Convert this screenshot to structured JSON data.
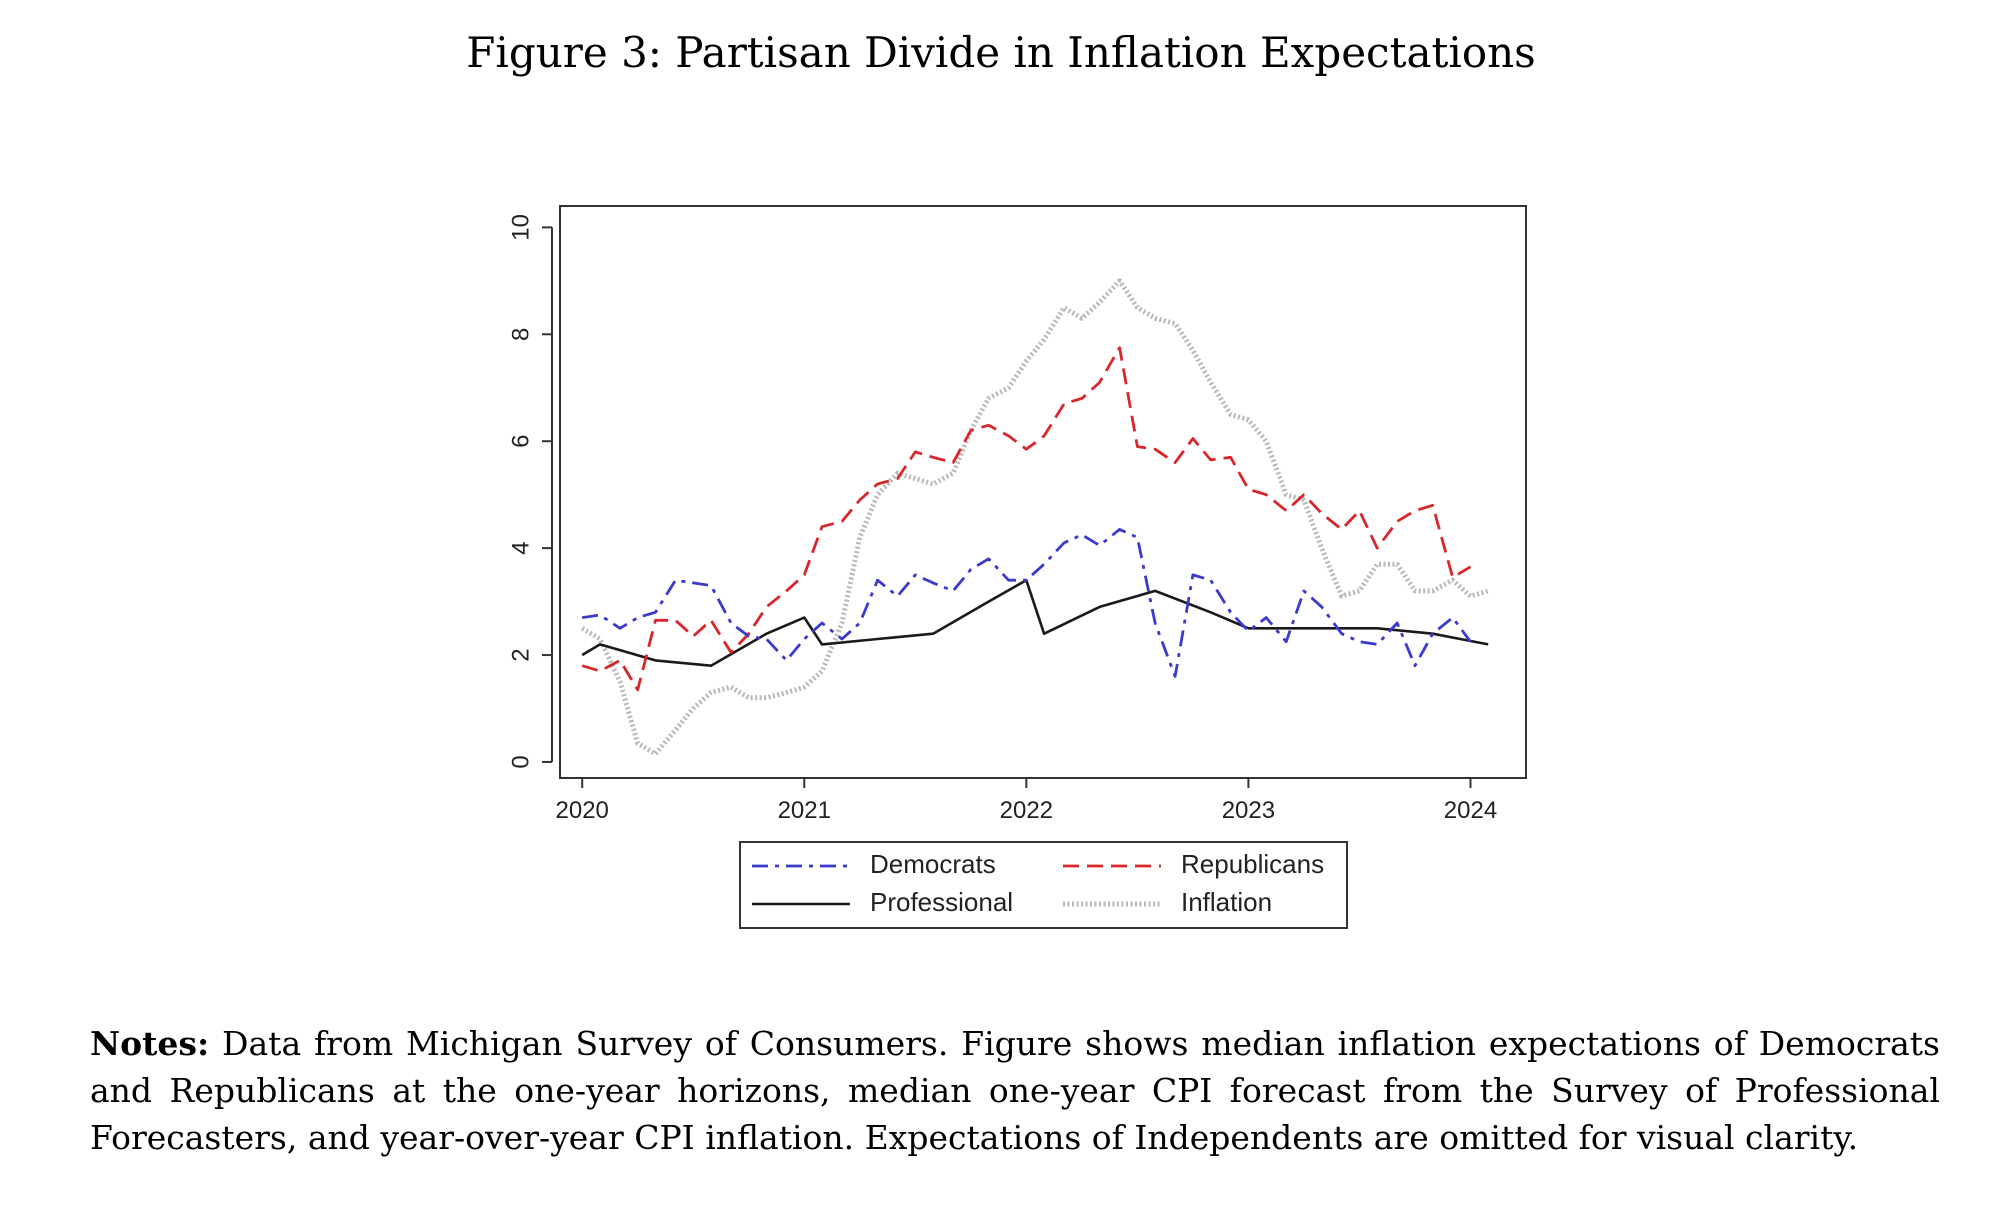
{
  "figure": {
    "title": "Figure 3: Partisan Divide in Inflation Expectations",
    "notes_label": "Notes:",
    "notes_text": "Data from Michigan Survey of Consumers. Figure shows median inflation expectations of Democrats and Republicans at the one-year horizons, median one-year CPI forecast from the Survey of Professional Forecasters, and year-over-year CPI inflation. Expectations of Independents are omitted for visual clarity."
  },
  "chart_data": {
    "type": "line",
    "title": "",
    "xlabel": "",
    "ylabel": "",
    "xlim": [
      2019.9,
      2024.25
    ],
    "ylim": [
      -0.3,
      10.4
    ],
    "xticks": [
      2020,
      2021,
      2022,
      2023,
      2024
    ],
    "xtick_labels": [
      "2020",
      "2021",
      "2022",
      "2023",
      "2024"
    ],
    "yticks": [
      0,
      2,
      4,
      6,
      8,
      10
    ],
    "ytick_labels": [
      "0",
      "2",
      "4",
      "6",
      "8",
      "10"
    ],
    "legend_position": "bottom",
    "series": [
      {
        "name": "Democrats",
        "color": "#3a3acd",
        "style": "dashdot",
        "points": [
          [
            2020.0,
            2.7
          ],
          [
            2020.08,
            2.75
          ],
          [
            2020.17,
            2.5
          ],
          [
            2020.25,
            2.7
          ],
          [
            2020.33,
            2.8
          ],
          [
            2020.42,
            3.4
          ],
          [
            2020.5,
            3.35
          ],
          [
            2020.58,
            3.3
          ],
          [
            2020.67,
            2.6
          ],
          [
            2020.75,
            2.35
          ],
          [
            2020.83,
            2.3
          ],
          [
            2020.92,
            1.9
          ],
          [
            2021.0,
            2.3
          ],
          [
            2021.08,
            2.6
          ],
          [
            2021.17,
            2.3
          ],
          [
            2021.25,
            2.6
          ],
          [
            2021.33,
            3.4
          ],
          [
            2021.42,
            3.1
          ],
          [
            2021.5,
            3.5
          ],
          [
            2021.58,
            3.35
          ],
          [
            2021.67,
            3.2
          ],
          [
            2021.75,
            3.6
          ],
          [
            2021.83,
            3.8
          ],
          [
            2021.92,
            3.4
          ],
          [
            2022.0,
            3.4
          ],
          [
            2022.08,
            3.7
          ],
          [
            2022.17,
            4.1
          ],
          [
            2022.25,
            4.25
          ],
          [
            2022.33,
            4.05
          ],
          [
            2022.42,
            4.35
          ],
          [
            2022.5,
            4.2
          ],
          [
            2022.58,
            2.6
          ],
          [
            2022.67,
            1.6
          ],
          [
            2022.75,
            3.5
          ],
          [
            2022.83,
            3.4
          ],
          [
            2022.92,
            2.8
          ],
          [
            2023.0,
            2.45
          ],
          [
            2023.08,
            2.7
          ],
          [
            2023.17,
            2.25
          ],
          [
            2023.25,
            3.2
          ],
          [
            2023.33,
            2.9
          ],
          [
            2023.42,
            2.4
          ],
          [
            2023.5,
            2.25
          ],
          [
            2023.58,
            2.2
          ],
          [
            2023.67,
            2.6
          ],
          [
            2023.75,
            1.8
          ],
          [
            2023.83,
            2.4
          ],
          [
            2023.92,
            2.7
          ],
          [
            2024.0,
            2.25
          ]
        ]
      },
      {
        "name": "Republicans",
        "color": "#d9262b",
        "style": "dashed",
        "points": [
          [
            2020.0,
            1.8
          ],
          [
            2020.08,
            1.7
          ],
          [
            2020.17,
            1.9
          ],
          [
            2020.25,
            1.35
          ],
          [
            2020.33,
            2.65
          ],
          [
            2020.42,
            2.65
          ],
          [
            2020.5,
            2.35
          ],
          [
            2020.58,
            2.65
          ],
          [
            2020.67,
            2.05
          ],
          [
            2020.75,
            2.4
          ],
          [
            2020.83,
            2.9
          ],
          [
            2020.92,
            3.2
          ],
          [
            2021.0,
            3.5
          ],
          [
            2021.08,
            4.4
          ],
          [
            2021.17,
            4.5
          ],
          [
            2021.25,
            4.9
          ],
          [
            2021.33,
            5.2
          ],
          [
            2021.42,
            5.3
          ],
          [
            2021.5,
            5.8
          ],
          [
            2021.58,
            5.7
          ],
          [
            2021.67,
            5.6
          ],
          [
            2021.75,
            6.2
          ],
          [
            2021.83,
            6.3
          ],
          [
            2021.92,
            6.1
          ],
          [
            2022.0,
            5.85
          ],
          [
            2022.08,
            6.1
          ],
          [
            2022.17,
            6.7
          ],
          [
            2022.25,
            6.8
          ],
          [
            2022.33,
            7.1
          ],
          [
            2022.42,
            7.75
          ],
          [
            2022.5,
            5.9
          ],
          [
            2022.58,
            5.85
          ],
          [
            2022.67,
            5.6
          ],
          [
            2022.75,
            6.05
          ],
          [
            2022.83,
            5.65
          ],
          [
            2022.92,
            5.7
          ],
          [
            2023.0,
            5.1
          ],
          [
            2023.08,
            5.0
          ],
          [
            2023.17,
            4.7
          ],
          [
            2023.25,
            5.0
          ],
          [
            2023.33,
            4.65
          ],
          [
            2023.42,
            4.35
          ],
          [
            2023.5,
            4.7
          ],
          [
            2023.58,
            4.0
          ],
          [
            2023.67,
            4.5
          ],
          [
            2023.75,
            4.7
          ],
          [
            2023.83,
            4.8
          ],
          [
            2023.92,
            3.45
          ],
          [
            2024.0,
            3.65
          ]
        ]
      },
      {
        "name": "Professional",
        "color": "#1a1a1a",
        "style": "solid",
        "points": [
          [
            2020.0,
            2.0
          ],
          [
            2020.08,
            2.2
          ],
          [
            2020.33,
            1.9
          ],
          [
            2020.58,
            1.8
          ],
          [
            2020.83,
            2.4
          ],
          [
            2021.0,
            2.7
          ],
          [
            2021.08,
            2.2
          ],
          [
            2021.33,
            2.3
          ],
          [
            2021.58,
            2.4
          ],
          [
            2021.83,
            3.0
          ],
          [
            2022.0,
            3.4
          ],
          [
            2022.08,
            2.4
          ],
          [
            2022.33,
            2.9
          ],
          [
            2022.58,
            3.2
          ],
          [
            2022.83,
            2.8
          ],
          [
            2023.0,
            2.5
          ],
          [
            2023.33,
            2.5
          ],
          [
            2023.58,
            2.5
          ],
          [
            2023.83,
            2.4
          ],
          [
            2024.08,
            2.2
          ]
        ]
      },
      {
        "name": "Inflation",
        "color": "#b8b8b8",
        "style": "dotted",
        "points": [
          [
            2020.0,
            2.5
          ],
          [
            2020.08,
            2.3
          ],
          [
            2020.17,
            1.5
          ],
          [
            2020.25,
            0.35
          ],
          [
            2020.33,
            0.15
          ],
          [
            2020.42,
            0.6
          ],
          [
            2020.5,
            1.0
          ],
          [
            2020.58,
            1.3
          ],
          [
            2020.67,
            1.4
          ],
          [
            2020.75,
            1.2
          ],
          [
            2020.83,
            1.2
          ],
          [
            2020.92,
            1.3
          ],
          [
            2021.0,
            1.4
          ],
          [
            2021.08,
            1.7
          ],
          [
            2021.17,
            2.6
          ],
          [
            2021.25,
            4.2
          ],
          [
            2021.33,
            5.0
          ],
          [
            2021.42,
            5.4
          ],
          [
            2021.5,
            5.3
          ],
          [
            2021.58,
            5.2
          ],
          [
            2021.67,
            5.4
          ],
          [
            2021.75,
            6.2
          ],
          [
            2021.83,
            6.8
          ],
          [
            2021.92,
            7.0
          ],
          [
            2022.0,
            7.5
          ],
          [
            2022.08,
            7.9
          ],
          [
            2022.17,
            8.5
          ],
          [
            2022.25,
            8.3
          ],
          [
            2022.33,
            8.6
          ],
          [
            2022.42,
            9.0
          ],
          [
            2022.5,
            8.5
          ],
          [
            2022.58,
            8.3
          ],
          [
            2022.67,
            8.2
          ],
          [
            2022.75,
            7.7
          ],
          [
            2022.83,
            7.1
          ],
          [
            2022.92,
            6.5
          ],
          [
            2023.0,
            6.4
          ],
          [
            2023.08,
            6.0
          ],
          [
            2023.17,
            5.0
          ],
          [
            2023.25,
            4.9
          ],
          [
            2023.33,
            4.0
          ],
          [
            2023.42,
            3.1
          ],
          [
            2023.5,
            3.2
          ],
          [
            2023.58,
            3.7
          ],
          [
            2023.67,
            3.7
          ],
          [
            2023.75,
            3.2
          ],
          [
            2023.83,
            3.2
          ],
          [
            2023.92,
            3.4
          ],
          [
            2024.0,
            3.1
          ],
          [
            2024.08,
            3.2
          ]
        ]
      }
    ]
  }
}
